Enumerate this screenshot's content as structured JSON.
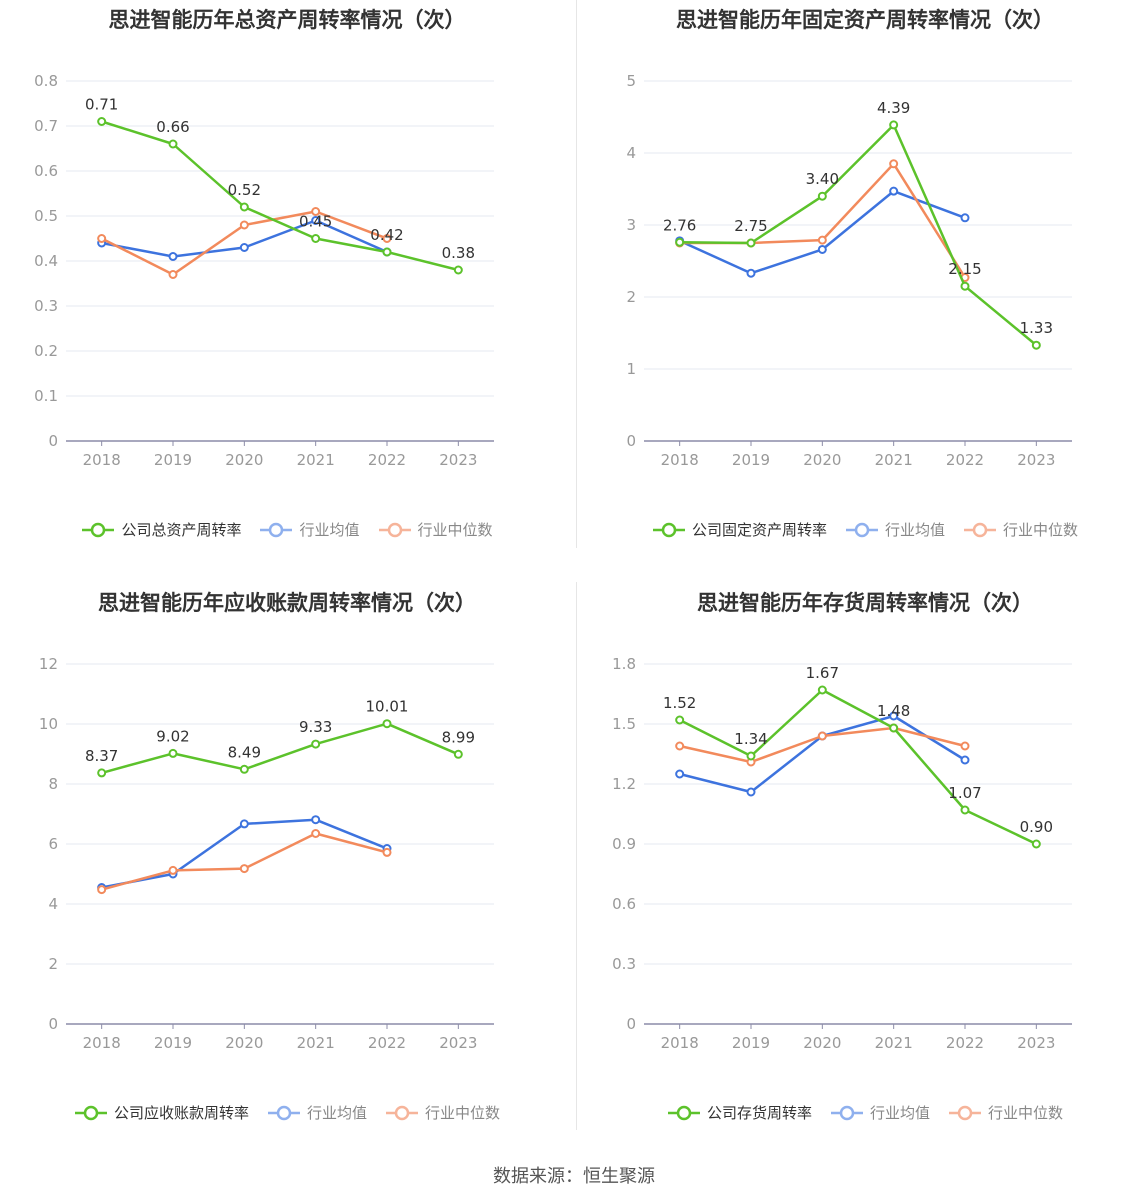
{
  "source_text": "数据来源：恒生聚源",
  "colors": {
    "company": "#5cc22b",
    "avg": "#3d73de",
    "median": "#f28a5c",
    "grid": "#e6e8f2",
    "axis": "#8c8ca8",
    "tick": "#999999",
    "label": "#333333"
  },
  "charts": [
    {
      "title": "思进智能历年总资产周转率情况（次）",
      "legend": [
        "公司总资产周转率",
        "行业均值",
        "行业中位数"
      ],
      "chart_data": {
        "type": "line",
        "categories": [
          "2018",
          "2019",
          "2020",
          "2021",
          "2022",
          "2023"
        ],
        "yticks": [
          "0",
          "0.1",
          "0.2",
          "0.3",
          "0.4",
          "0.5",
          "0.6",
          "0.7",
          "0.8"
        ],
        "ylim": [
          0,
          0.8
        ],
        "series": [
          {
            "name": "公司总资产周转率",
            "values": [
              0.71,
              0.66,
              0.52,
              0.45,
              0.42,
              0.38
            ],
            "labels": [
              "0.71",
              "0.66",
              "0.52",
              "0.45",
              "0.42",
              "0.38"
            ]
          },
          {
            "name": "行业均值",
            "values": [
              0.44,
              0.41,
              0.43,
              0.49,
              0.42,
              null
            ]
          },
          {
            "name": "行业中位数",
            "values": [
              0.45,
              0.37,
              0.48,
              0.51,
              0.45,
              null
            ]
          }
        ]
      }
    },
    {
      "title": "思进智能历年固定资产周转率情况（次）",
      "legend": [
        "公司固定资产周转率",
        "行业均值",
        "行业中位数"
      ],
      "chart_data": {
        "type": "line",
        "categories": [
          "2018",
          "2019",
          "2020",
          "2021",
          "2022",
          "2023"
        ],
        "yticks": [
          "0",
          "1",
          "2",
          "3",
          "4",
          "5"
        ],
        "ylim": [
          0,
          5
        ],
        "series": [
          {
            "name": "公司固定资产周转率",
            "values": [
              2.76,
              2.75,
              3.4,
              4.39,
              2.15,
              1.33
            ],
            "labels": [
              "2.76",
              "2.75",
              "3.40",
              "4.39",
              "2.15",
              "1.33"
            ]
          },
          {
            "name": "行业均值",
            "values": [
              2.78,
              2.33,
              2.66,
              3.47,
              3.1,
              null
            ]
          },
          {
            "name": "行业中位数",
            "values": [
              2.75,
              2.75,
              2.79,
              3.85,
              2.27,
              null
            ]
          }
        ]
      }
    },
    {
      "title": "思进智能历年应收账款周转率情况（次）",
      "legend": [
        "公司应收账款周转率",
        "行业均值",
        "行业中位数"
      ],
      "chart_data": {
        "type": "line",
        "categories": [
          "2018",
          "2019",
          "2020",
          "2021",
          "2022",
          "2023"
        ],
        "yticks": [
          "0",
          "2",
          "4",
          "6",
          "8",
          "10",
          "12"
        ],
        "ylim": [
          0,
          12
        ],
        "series": [
          {
            "name": "公司应收账款周转率",
            "values": [
              8.37,
              9.02,
              8.49,
              9.33,
              10.01,
              8.99
            ],
            "labels": [
              "8.37",
              "9.02",
              "8.49",
              "9.33",
              "10.01",
              "8.99"
            ]
          },
          {
            "name": "行业均值",
            "values": [
              4.55,
              5.0,
              6.67,
              6.81,
              5.85,
              null
            ]
          },
          {
            "name": "行业中位数",
            "values": [
              4.48,
              5.12,
              5.18,
              6.35,
              5.72,
              null
            ]
          }
        ]
      }
    },
    {
      "title": "思进智能历年存货周转率情况（次）",
      "legend": [
        "公司存货周转率",
        "行业均值",
        "行业中位数"
      ],
      "chart_data": {
        "type": "line",
        "categories": [
          "2018",
          "2019",
          "2020",
          "2021",
          "2022",
          "2023"
        ],
        "yticks": [
          "0",
          "0.3",
          "0.6",
          "0.9",
          "1.2",
          "1.5",
          "1.8"
        ],
        "ylim": [
          0,
          1.8
        ],
        "series": [
          {
            "name": "公司存货周转率",
            "values": [
              1.52,
              1.34,
              1.67,
              1.48,
              1.07,
              0.9
            ],
            "labels": [
              "1.52",
              "1.34",
              "1.67",
              "1.48",
              "1.07",
              "0.90"
            ]
          },
          {
            "name": "行业均值",
            "values": [
              1.25,
              1.16,
              1.44,
              1.54,
              1.32,
              null
            ]
          },
          {
            "name": "行业中位数",
            "values": [
              1.39,
              1.31,
              1.44,
              1.48,
              1.39,
              null
            ]
          }
        ]
      }
    }
  ]
}
